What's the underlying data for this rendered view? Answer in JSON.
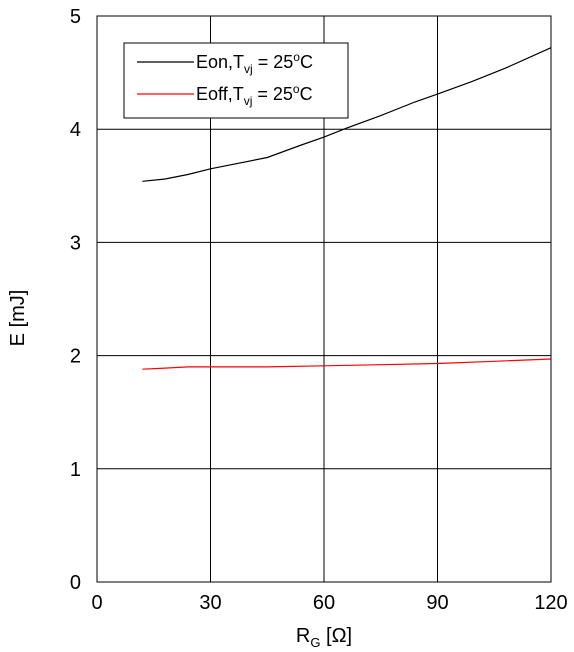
{
  "chart_data": {
    "type": "line",
    "xlabel": {
      "main": "R",
      "sub": "G",
      "unit": " [Ω]"
    },
    "ylabel": "E [mJ]",
    "xlim": [
      0,
      120
    ],
    "ylim": [
      0,
      5
    ],
    "x_ticks": [
      0,
      30,
      60,
      90,
      120
    ],
    "y_ticks": [
      0,
      1,
      2,
      3,
      4,
      5
    ],
    "grid": true,
    "legend_position": "top-left",
    "series": [
      {
        "name": "Eon,Tvj = 25oC",
        "legend": {
          "prefix": "Eon,T",
          "sub": "vj",
          "mid": " = 25",
          "sup": "o",
          "suffix": "C"
        },
        "color": "#000000",
        "x": [
          12,
          18,
          24,
          30,
          36,
          45,
          54,
          60,
          66,
          75,
          84,
          90,
          99,
          108,
          120
        ],
        "y": [
          3.54,
          3.56,
          3.6,
          3.65,
          3.69,
          3.75,
          3.86,
          3.93,
          4.01,
          4.12,
          4.24,
          4.31,
          4.42,
          4.54,
          4.72
        ]
      },
      {
        "name": "Eoff,Tvj = 25oC",
        "legend": {
          "prefix": "Eoff,T",
          "sub": "vj",
          "mid": " = 25",
          "sup": "o",
          "suffix": "C"
        },
        "color": "#ff0000",
        "x": [
          12,
          18,
          24,
          30,
          45,
          60,
          75,
          90,
          105,
          120
        ],
        "y": [
          1.88,
          1.89,
          1.9,
          1.9,
          1.9,
          1.91,
          1.92,
          1.93,
          1.95,
          1.97
        ]
      }
    ]
  }
}
